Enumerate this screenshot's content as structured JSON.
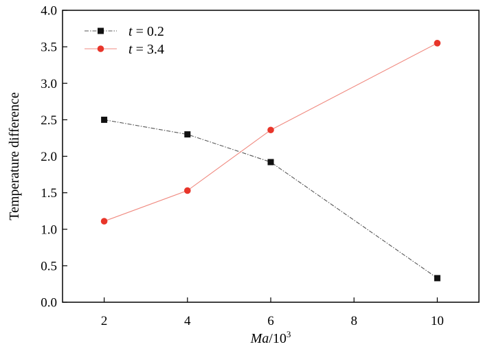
{
  "chart_data": {
    "type": "line",
    "xlabel": "Ma/10³",
    "xlabel_parts": {
      "main": "Ma",
      "unit": "/10",
      "exp": "3"
    },
    "ylabel": "Temperature difference",
    "xlim": [
      1,
      11
    ],
    "ylim": [
      0,
      4
    ],
    "xticks": [
      2,
      4,
      6,
      8,
      10
    ],
    "yticks": [
      0.0,
      0.5,
      1.0,
      1.5,
      2.0,
      2.5,
      3.0,
      3.5,
      4.0
    ],
    "xtick_labels": [
      "2",
      "4",
      "6",
      "8",
      "10"
    ],
    "ytick_labels": [
      "0.0",
      "0.5",
      "1.0",
      "1.5",
      "2.0",
      "2.5",
      "3.0",
      "3.5",
      "4.0"
    ],
    "grid": false,
    "legend_position": "top-left",
    "series": [
      {
        "name": "t = 0.2",
        "name_var": "t",
        "name_rest": " = 0.2",
        "marker": "square",
        "marker_color": "#111111",
        "line_color": "#555555",
        "line_style": "dash-dot",
        "x": [
          2,
          4,
          6,
          10
        ],
        "y": [
          2.5,
          2.3,
          1.92,
          0.33
        ]
      },
      {
        "name": "t = 3.4",
        "name_var": "t",
        "name_rest": " = 3.4",
        "marker": "circle",
        "marker_color": "#e8352a",
        "line_color": "#f08a80",
        "line_style": "solid",
        "x": [
          2,
          4,
          6,
          10
        ],
        "y": [
          1.11,
          1.53,
          2.36,
          3.55
        ]
      }
    ]
  }
}
